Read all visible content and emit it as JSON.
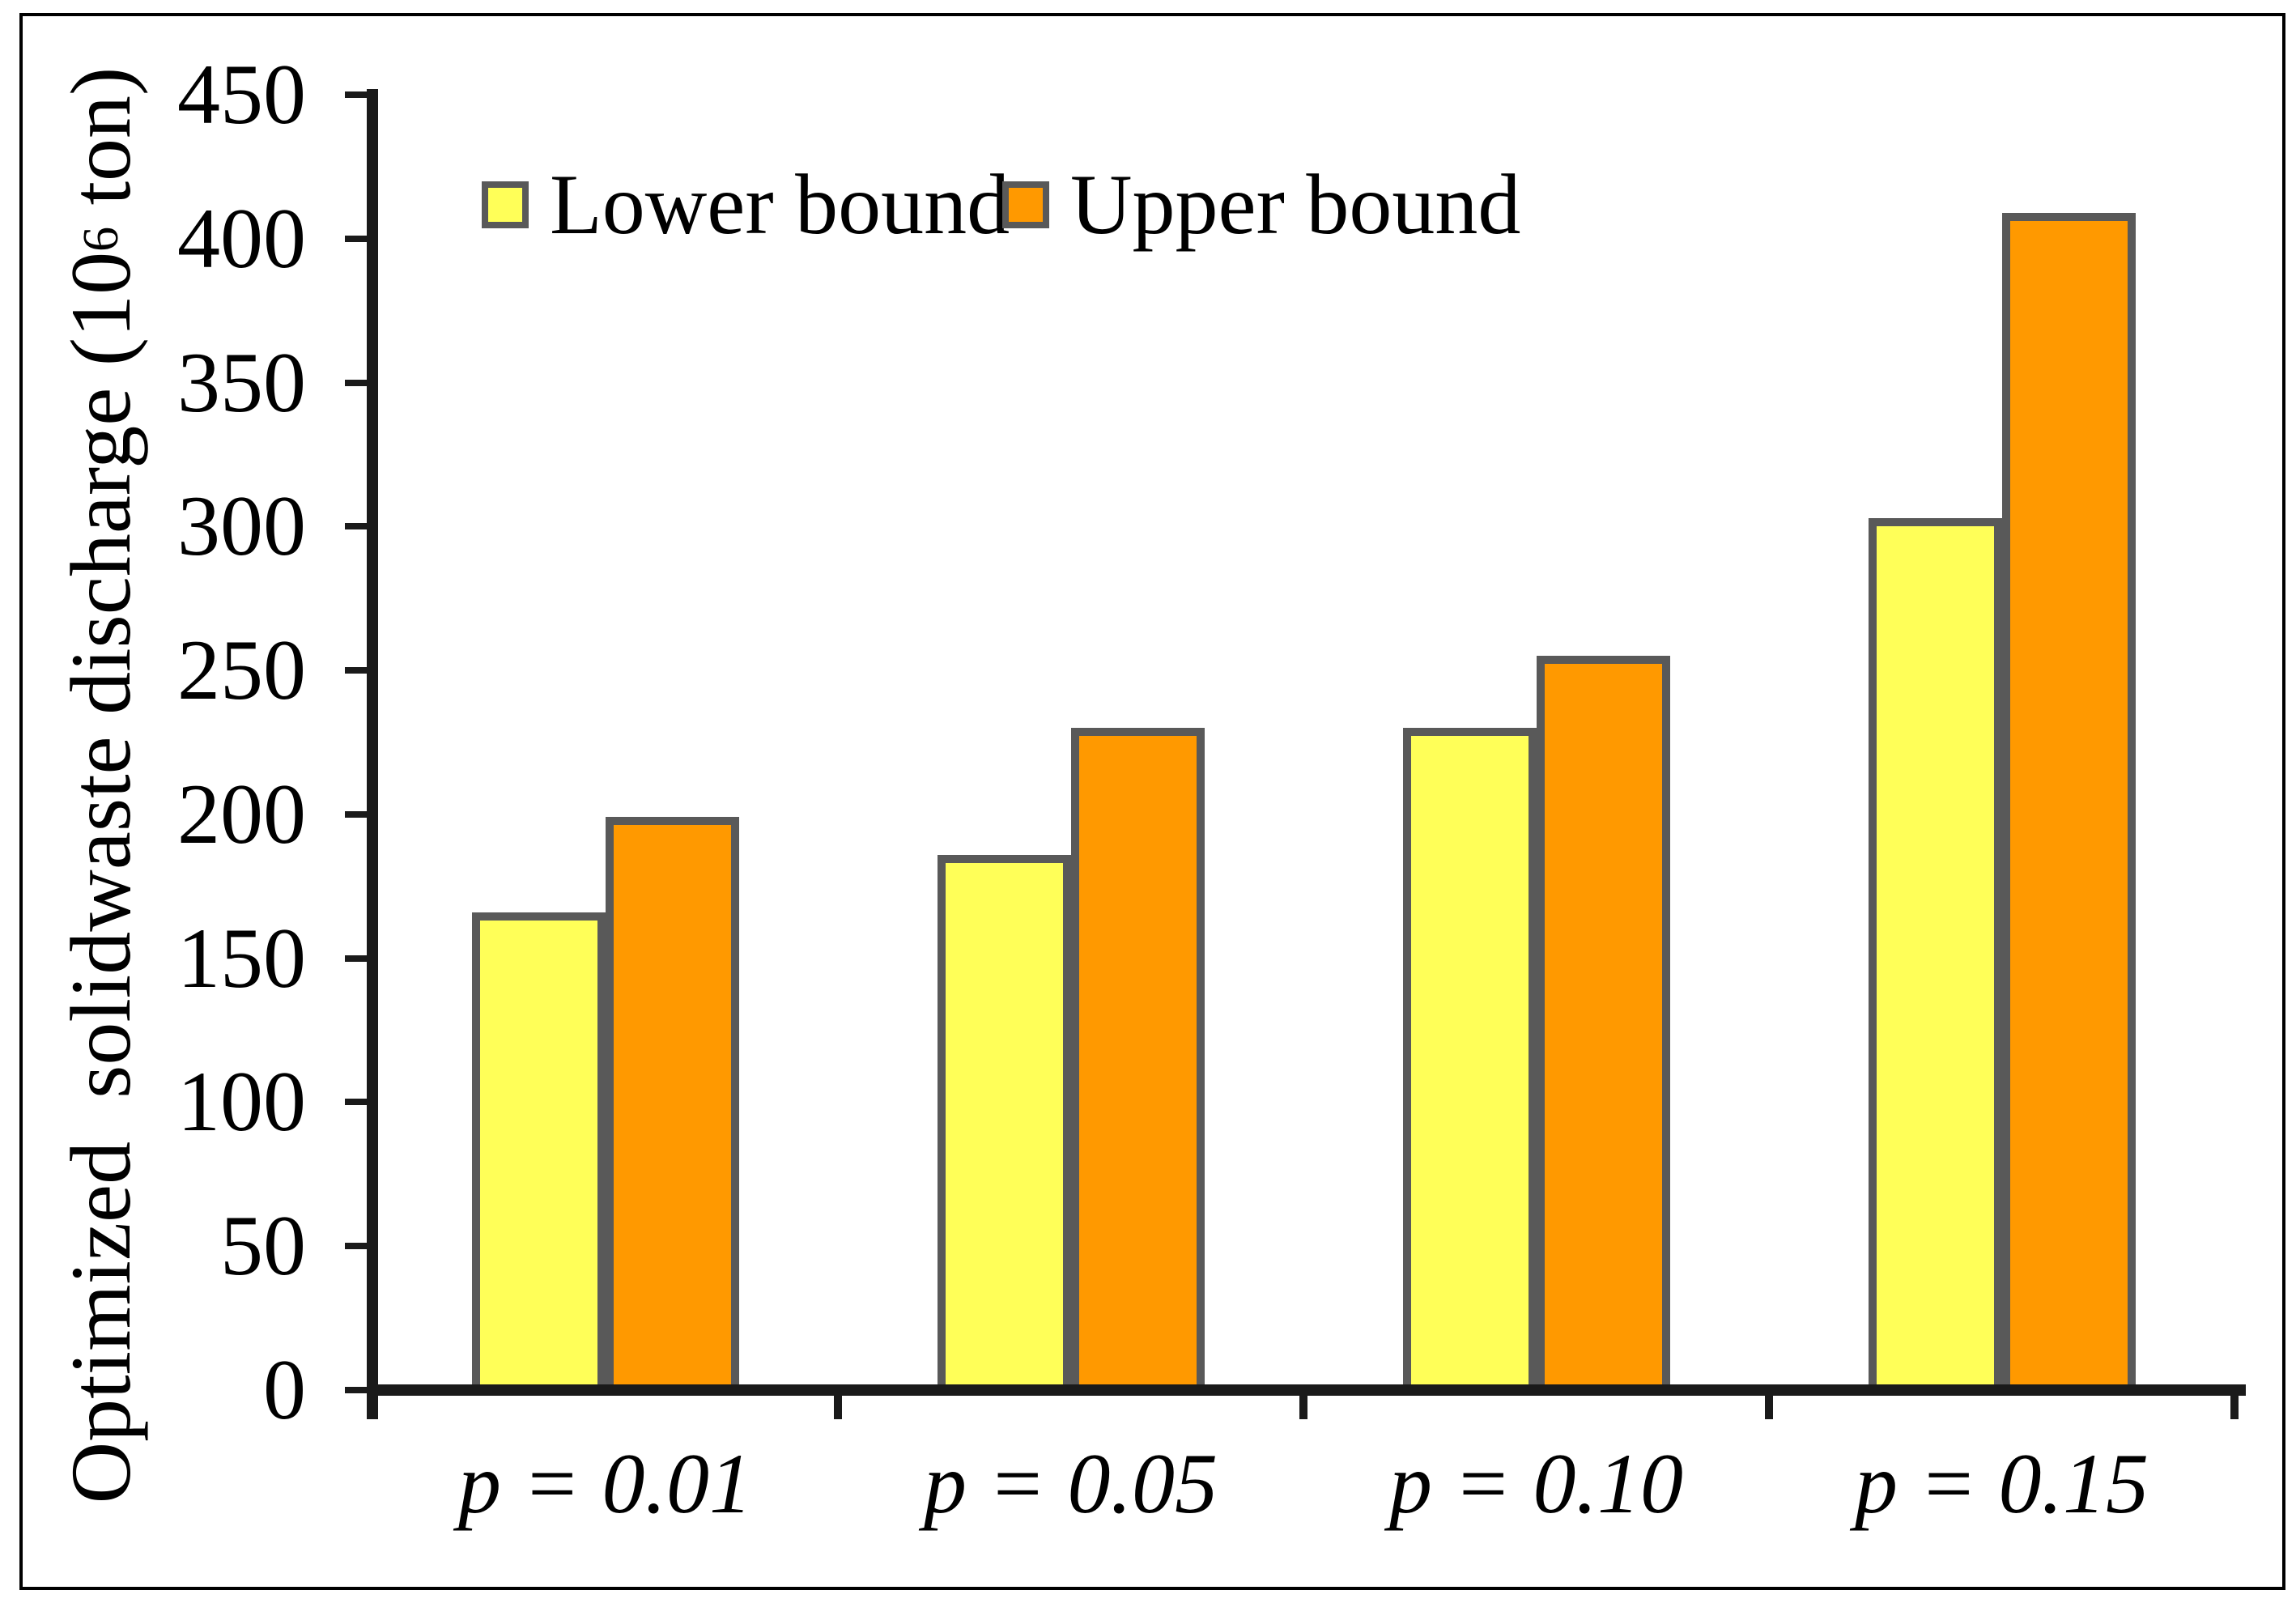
{
  "chart_data": {
    "type": "bar",
    "categories": [
      "p = 0.01",
      "p = 0.05",
      "p = 0.10",
      "p = 0.15"
    ],
    "series": [
      {
        "name": "Lower bound",
        "color": "#FFFF58",
        "values": [
          166,
          186,
          230,
          303
        ]
      },
      {
        "name": "Upper bound",
        "color": "#FF9900",
        "values": [
          199,
          230,
          255,
          409
        ]
      }
    ],
    "ylabel_parts": {
      "prefix": "Optimized  solidwaste discharge (10",
      "superscript": "6",
      "suffix": " ton)"
    },
    "ylabel_text": "Optimized solidwaste discharge (10^6 ton)",
    "xlabel": "",
    "title": "",
    "ylim": [
      0,
      450
    ],
    "yticks": [
      0,
      50,
      100,
      150,
      200,
      250,
      300,
      350,
      400,
      450
    ],
    "grid": false,
    "legend_position": "top-left-inside",
    "colors": {
      "bar_border": "#595959",
      "axis": "#1A1A1A",
      "background": "#FFFFFF",
      "frame_border": "#000000"
    }
  }
}
